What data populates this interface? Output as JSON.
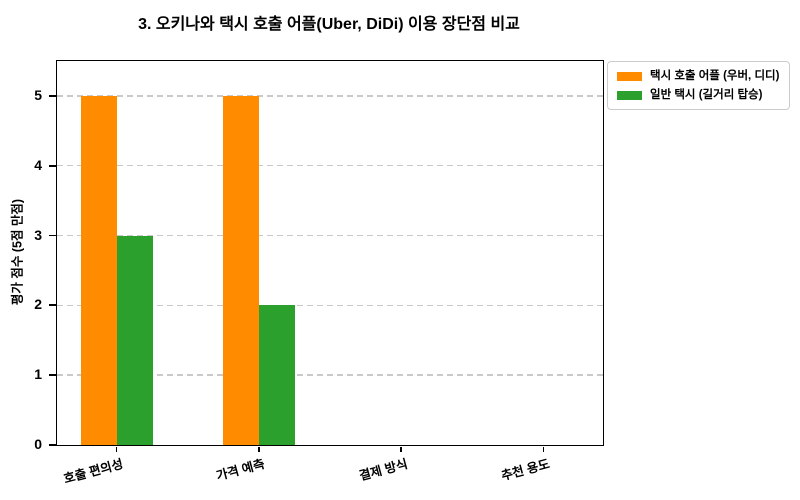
{
  "chart_data": {
    "type": "bar",
    "title": "3. 오키나와 택시 호출 어플(Uber, DiDi) 이용 장단점 비교",
    "ylabel": "평가 점수 (5점 만점)",
    "xlabel": "",
    "categories": [
      "호출 편의성",
      "가격 예측",
      "결제 방식",
      "추천 용도"
    ],
    "series": [
      {
        "name": "택시 호출 어플 (우버, 디디)",
        "color": "#FF8C00",
        "values": [
          5,
          5,
          0,
          0
        ]
      },
      {
        "name": "일반 택시 (길거리 탑승)",
        "color": "#2CA02C",
        "values": [
          3,
          2,
          0,
          0
        ]
      }
    ],
    "ylim": [
      0,
      5.5
    ],
    "yticks": [
      0,
      1,
      2,
      3,
      4,
      5
    ],
    "grid": "horizontal-dashed",
    "legend_position": "upper-right-outside",
    "colors": {
      "grid": "#C9C9C9",
      "axis": "#000000",
      "background": "#FFFFFF",
      "text": "#000000",
      "legend_border": "#CCCCCC"
    }
  }
}
